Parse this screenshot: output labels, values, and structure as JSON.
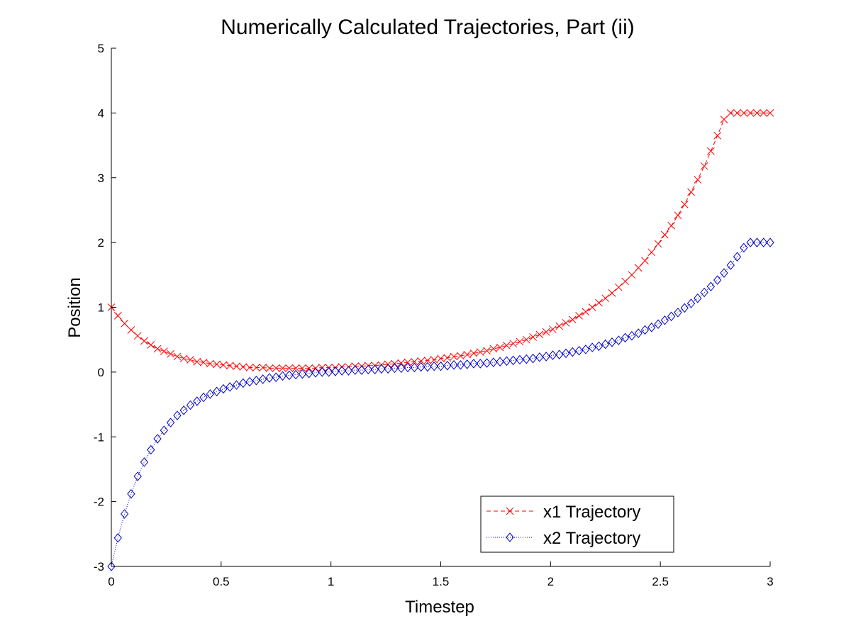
{
  "chart_data": {
    "type": "line",
    "title": "Numerically Calculated Trajectories, Part (ii)",
    "xlabel": "Timestep",
    "ylabel": "Position",
    "xlim": [
      0,
      3
    ],
    "ylim": [
      -3,
      5
    ],
    "xticks": [
      "0",
      "0.5",
      "1",
      "1.5",
      "2",
      "2.5",
      "3"
    ],
    "yticks": [
      "-3",
      "-2",
      "-1",
      "0",
      "1",
      "2",
      "3",
      "4",
      "5"
    ],
    "grid": false,
    "legend_position": "bottom-right",
    "x": [
      0.0,
      0.03,
      0.06,
      0.09,
      0.12,
      0.15,
      0.18,
      0.21,
      0.24,
      0.27,
      0.3,
      0.33,
      0.36,
      0.39,
      0.42,
      0.45,
      0.48,
      0.51,
      0.54,
      0.57,
      0.6,
      0.63,
      0.66,
      0.69,
      0.72,
      0.75,
      0.78,
      0.81,
      0.84,
      0.87,
      0.9,
      0.93,
      0.96,
      0.99,
      1.02,
      1.05,
      1.08,
      1.11,
      1.14,
      1.17,
      1.2,
      1.23,
      1.26,
      1.29,
      1.32,
      1.35,
      1.38,
      1.41,
      1.44,
      1.47,
      1.5,
      1.53,
      1.56,
      1.59,
      1.62,
      1.65,
      1.68,
      1.71,
      1.74,
      1.77,
      1.8,
      1.83,
      1.86,
      1.89,
      1.92,
      1.95,
      1.98,
      2.01,
      2.04,
      2.07,
      2.1,
      2.13,
      2.16,
      2.19,
      2.22,
      2.25,
      2.28,
      2.31,
      2.34,
      2.37,
      2.4,
      2.43,
      2.46,
      2.49,
      2.52,
      2.55,
      2.58,
      2.61,
      2.64,
      2.67,
      2.7,
      2.73,
      2.76,
      2.79,
      2.82,
      2.85,
      2.88,
      2.91,
      2.94,
      2.97,
      3.0
    ],
    "series": [
      {
        "name": "x1 Trajectory",
        "color": "#ff0000",
        "marker": "x",
        "line_style": "dashed",
        "values": [
          1.0,
          0.87,
          0.75,
          0.65,
          0.56,
          0.48,
          0.42,
          0.36,
          0.32,
          0.28,
          0.24,
          0.21,
          0.19,
          0.16,
          0.15,
          0.13,
          0.12,
          0.11,
          0.1,
          0.09,
          0.08,
          0.07,
          0.07,
          0.07,
          0.06,
          0.06,
          0.06,
          0.06,
          0.06,
          0.06,
          0.06,
          0.06,
          0.07,
          0.07,
          0.07,
          0.08,
          0.08,
          0.09,
          0.09,
          0.1,
          0.1,
          0.11,
          0.12,
          0.13,
          0.14,
          0.15,
          0.16,
          0.17,
          0.18,
          0.19,
          0.21,
          0.22,
          0.24,
          0.25,
          0.27,
          0.29,
          0.31,
          0.33,
          0.36,
          0.38,
          0.41,
          0.44,
          0.47,
          0.5,
          0.54,
          0.58,
          0.62,
          0.66,
          0.71,
          0.76,
          0.81,
          0.87,
          0.93,
          1.0,
          1.07,
          1.14,
          1.22,
          1.31,
          1.4,
          1.5,
          1.61,
          1.72,
          1.85,
          1.98,
          2.12,
          2.26,
          2.42,
          2.59,
          2.78,
          2.97,
          3.18,
          3.41,
          3.65,
          3.9,
          4.0,
          4.0,
          4.0,
          4.0,
          4.0,
          4.0,
          4.0
        ]
      },
      {
        "name": "x2 Trajectory",
        "color": "#0000cc",
        "marker": "diamond",
        "line_style": "dotted",
        "values": [
          -3.0,
          -2.56,
          -2.19,
          -1.88,
          -1.61,
          -1.39,
          -1.2,
          -1.03,
          -0.9,
          -0.78,
          -0.67,
          -0.59,
          -0.51,
          -0.45,
          -0.39,
          -0.34,
          -0.3,
          -0.26,
          -0.23,
          -0.2,
          -0.17,
          -0.15,
          -0.13,
          -0.11,
          -0.09,
          -0.08,
          -0.06,
          -0.05,
          -0.04,
          -0.03,
          -0.02,
          -0.01,
          0.0,
          0.0,
          0.01,
          0.02,
          0.02,
          0.03,
          0.03,
          0.04,
          0.04,
          0.05,
          0.05,
          0.06,
          0.06,
          0.07,
          0.07,
          0.08,
          0.08,
          0.09,
          0.09,
          0.1,
          0.11,
          0.11,
          0.12,
          0.13,
          0.13,
          0.14,
          0.15,
          0.16,
          0.17,
          0.18,
          0.19,
          0.2,
          0.21,
          0.23,
          0.24,
          0.26,
          0.27,
          0.29,
          0.31,
          0.33,
          0.35,
          0.38,
          0.4,
          0.43,
          0.46,
          0.49,
          0.53,
          0.56,
          0.6,
          0.65,
          0.69,
          0.74,
          0.8,
          0.86,
          0.92,
          0.99,
          1.06,
          1.14,
          1.23,
          1.32,
          1.42,
          1.53,
          1.65,
          1.78,
          1.92,
          2.0,
          2.0,
          2.0,
          2.0
        ]
      }
    ]
  }
}
